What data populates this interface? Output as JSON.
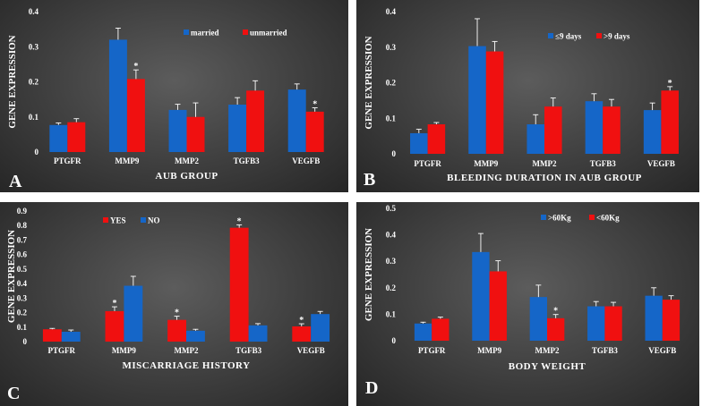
{
  "colors": {
    "blue": "#1566c8",
    "red": "#f01010"
  },
  "chart_data": [
    {
      "type": "bar",
      "panel_label": "A",
      "title": "",
      "xlabel": "AUB GROUP",
      "ylabel": "GENE EXPRESSION",
      "ylim": [
        0,
        0.4
      ],
      "yticks": [
        "0",
        "0.1",
        "0.2",
        "0.3",
        "0.4"
      ],
      "categories": [
        "PTGFR",
        "MMP9",
        "MMP2",
        "TGFB3",
        "VEGFB"
      ],
      "legend": [
        "married",
        "unmarried"
      ],
      "series": [
        {
          "name": "married",
          "color": "blue",
          "values": [
            0.077,
            0.32,
            0.12,
            0.135,
            0.178
          ],
          "errors": [
            0.006,
            0.033,
            0.016,
            0.02,
            0.016
          ],
          "stars": [
            false,
            false,
            false,
            false,
            false
          ]
        },
        {
          "name": "unmarried",
          "color": "red",
          "values": [
            0.085,
            0.208,
            0.1,
            0.175,
            0.115
          ],
          "errors": [
            0.01,
            0.026,
            0.04,
            0.028,
            0.011
          ],
          "stars": [
            false,
            true,
            false,
            false,
            true
          ]
        }
      ]
    },
    {
      "type": "bar",
      "panel_label": "B",
      "title": "",
      "xlabel": "BLEEDING DURATION IN AUB GROUP",
      "ylabel": "GENE EXPRESSION",
      "ylim": [
        0,
        0.4
      ],
      "yticks": [
        "0",
        "0.1",
        "0.2",
        "0.3",
        "0.4"
      ],
      "categories": [
        "PTGFR",
        "MMP9",
        "MMP2",
        "TGFB3",
        "VEGFB"
      ],
      "legend": [
        "≤9 days",
        ">9 days"
      ],
      "series": [
        {
          "name": "≤9 days",
          "color": "blue",
          "values": [
            0.058,
            0.303,
            0.083,
            0.148,
            0.123
          ],
          "errors": [
            0.011,
            0.077,
            0.027,
            0.021,
            0.02
          ],
          "stars": [
            false,
            false,
            false,
            false,
            false
          ]
        },
        {
          "name": ">9 days",
          "color": "red",
          "values": [
            0.083,
            0.288,
            0.133,
            0.133,
            0.178
          ],
          "errors": [
            0.005,
            0.028,
            0.024,
            0.02,
            0.011
          ],
          "stars": [
            false,
            false,
            false,
            false,
            true
          ]
        }
      ]
    },
    {
      "type": "bar",
      "panel_label": "C",
      "title": "",
      "xlabel": "MISCARRIAGE HISTORY",
      "ylabel": "GENE EXPRESSION",
      "ylim": [
        0,
        0.9
      ],
      "yticks": [
        "0",
        "0.1",
        "0.2",
        "0.3",
        "0.4",
        "0.5",
        "0.6",
        "0.7",
        "0.8",
        "0.9"
      ],
      "categories": [
        "PTGFR",
        "MMP9",
        "MMP2",
        "TGFB3",
        "VEGFB"
      ],
      "legend": [
        "YES",
        "NO"
      ],
      "series": [
        {
          "name": "YES",
          "color": "red",
          "values": [
            0.085,
            0.21,
            0.15,
            0.785,
            0.105
          ],
          "errors": [
            0.006,
            0.03,
            0.025,
            0.02,
            0.018
          ],
          "stars": [
            false,
            true,
            true,
            true,
            true
          ]
        },
        {
          "name": "NO",
          "color": "blue",
          "values": [
            0.068,
            0.385,
            0.075,
            0.112,
            0.19
          ],
          "errors": [
            0.012,
            0.065,
            0.01,
            0.012,
            0.018
          ],
          "stars": [
            false,
            false,
            false,
            false,
            false
          ]
        }
      ]
    },
    {
      "type": "bar",
      "panel_label": "D",
      "title": "",
      "xlabel": "BODY WEIGHT",
      "ylabel": "GENE EXPRESSION",
      "ylim": [
        0,
        0.5
      ],
      "yticks": [
        "0",
        "0.1",
        "0.2",
        "0.3",
        "0.4",
        "0.5"
      ],
      "categories": [
        "PTGFR",
        "MMP9",
        "MMP2",
        "TGFB3",
        "VEGFB"
      ],
      "legend": [
        ">60Kg",
        "<60Kg"
      ],
      "series": [
        {
          "name": ">60Kg",
          "color": "blue",
          "values": [
            0.065,
            0.335,
            0.165,
            0.13,
            0.17
          ],
          "errors": [
            0.005,
            0.07,
            0.045,
            0.018,
            0.03
          ],
          "stars": [
            false,
            false,
            false,
            false,
            false
          ]
        },
        {
          "name": "<60Kg",
          "color": "red",
          "values": [
            0.083,
            0.262,
            0.085,
            0.13,
            0.155
          ],
          "errors": [
            0.006,
            0.04,
            0.014,
            0.015,
            0.015
          ],
          "stars": [
            false,
            false,
            true,
            false,
            false
          ]
        }
      ]
    }
  ]
}
